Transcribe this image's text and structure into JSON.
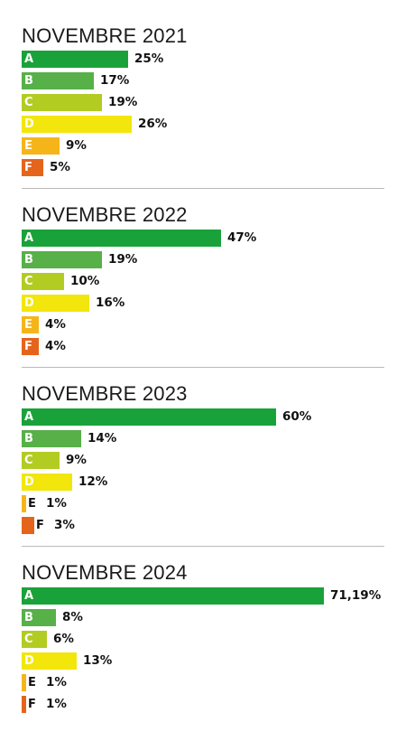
{
  "colors": {
    "A": "#1aa23a",
    "B": "#57b048",
    "C": "#b2cc22",
    "D": "#f2e60c",
    "E": "#f5b51a",
    "F": "#e5641c"
  },
  "chart_data": [
    {
      "type": "bar",
      "orientation": "horizontal",
      "title": "NOVEMBRE 2021",
      "categories": [
        "A",
        "B",
        "C",
        "D",
        "E",
        "F"
      ],
      "values": [
        25,
        17,
        19,
        26,
        9,
        5
      ],
      "value_labels": [
        "25%",
        "17%",
        "19%",
        "26%",
        "9%",
        "5%"
      ]
    },
    {
      "type": "bar",
      "orientation": "horizontal",
      "title": "NOVEMBRE 2022",
      "categories": [
        "A",
        "B",
        "C",
        "D",
        "E",
        "F"
      ],
      "values": [
        47,
        19,
        10,
        16,
        4,
        4
      ],
      "value_labels": [
        "47%",
        "19%",
        "10%",
        "16%",
        "4%",
        "4%"
      ]
    },
    {
      "type": "bar",
      "orientation": "horizontal",
      "title": "NOVEMBRE 2023",
      "categories": [
        "A",
        "B",
        "C",
        "D",
        "E",
        "F"
      ],
      "values": [
        60,
        14,
        9,
        12,
        1,
        3
      ],
      "value_labels": [
        "60%",
        "14%",
        "9%",
        "12%",
        "1%",
        "3%"
      ]
    },
    {
      "type": "bar",
      "orientation": "horizontal",
      "title": "NOVEMBRE 2024",
      "categories": [
        "A",
        "B",
        "C",
        "D",
        "E",
        "F"
      ],
      "values": [
        71.19,
        8,
        6,
        13,
        1,
        1
      ],
      "value_labels": [
        "71,19%",
        "8%",
        "6%",
        "13%",
        "1%",
        "1%"
      ]
    }
  ]
}
